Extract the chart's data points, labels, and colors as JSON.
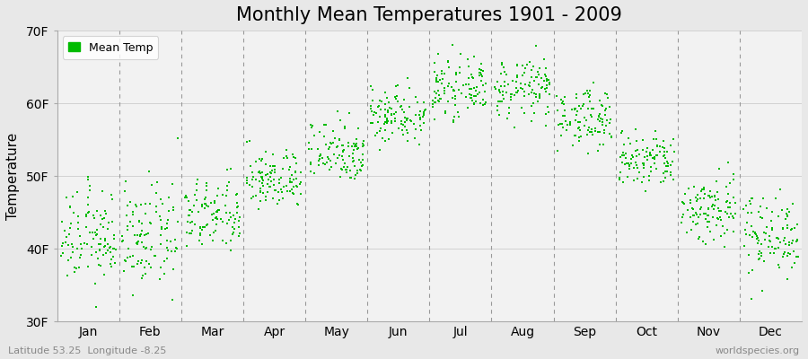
{
  "title": "Monthly Mean Temperatures 1901 - 2009",
  "ylabel": "Temperature",
  "xlabel_labels": [
    "Jan",
    "Feb",
    "Mar",
    "Apr",
    "May",
    "Jun",
    "Jul",
    "Aug",
    "Sep",
    "Oct",
    "Nov",
    "Dec"
  ],
  "ylim": [
    30,
    70
  ],
  "ytick_labels": [
    "30F",
    "40F",
    "50F",
    "60F",
    "70F"
  ],
  "ytick_values": [
    30,
    40,
    50,
    60,
    70
  ],
  "legend_label": "Mean Temp",
  "dot_color": "#00bb00",
  "bg_color": "#e8e8e8",
  "plot_bg_color": "#f2f2f2",
  "footer_left": "Latitude 53.25  Longitude -8.25",
  "footer_right": "worldspecies.org",
  "lat": 53.25,
  "lon": -8.25,
  "year_start": 1901,
  "year_end": 2009,
  "monthly_mean_f": [
    41.5,
    41.5,
    44.5,
    49.5,
    53.5,
    58.5,
    62.0,
    62.0,
    58.0,
    52.0,
    45.5,
    42.0
  ],
  "monthly_std_f": [
    3.2,
    3.5,
    2.5,
    2.0,
    2.2,
    2.0,
    1.8,
    2.0,
    2.0,
    2.0,
    2.5,
    2.8
  ]
}
